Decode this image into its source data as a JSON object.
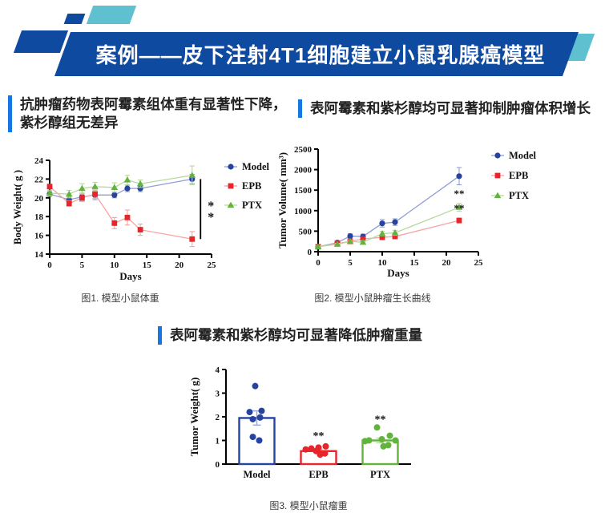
{
  "header": {
    "title": "案例——皮下注射4T1细胞建立小鼠乳腺癌模型"
  },
  "colors": {
    "banner_blue": "#0e4a9f",
    "teal": "#5fc0cf",
    "accent_bar": "#1577e0",
    "model_blue": "#2743a0",
    "epb_red": "#e8252a",
    "ptx_green": "#62b33c"
  },
  "sections": {
    "left": {
      "heading": "抗肿瘤药物表阿霉素组体重有显著性下降，紫杉醇组无差异",
      "caption": "图1. 模型小鼠体重"
    },
    "right": {
      "heading": "表阿霉素和紫杉醇均可显著抑制肿瘤体积增长",
      "caption": "图2. 模型小鼠肿瘤生长曲线"
    },
    "bottom": {
      "heading": "表阿霉素和紫杉醇均可显著降低肿瘤重量",
      "caption": "图3. 模型小鼠瘤重"
    }
  },
  "chart_data": [
    {
      "id": "body-weight",
      "type": "line",
      "xlabel": "Days",
      "ylabel": "Body Weight( g )",
      "xlim": [
        0,
        25
      ],
      "xticks": [
        0,
        5,
        10,
        15,
        20,
        25
      ],
      "ylim": [
        14,
        24
      ],
      "yticks": [
        14,
        16,
        18,
        20,
        22,
        24
      ],
      "x": [
        0,
        3,
        5,
        7,
        10,
        12,
        14,
        22
      ],
      "legend_position": "right",
      "series": [
        {
          "name": "Model",
          "marker": "circle",
          "color": "#2743a0",
          "line_color": "#8f9fd2",
          "values": [
            20.4,
            19.8,
            20.1,
            20.3,
            20.3,
            21.0,
            21.0,
            22.0
          ],
          "errors": [
            0.25,
            0.35,
            0.4,
            0.5,
            0.3,
            0.35,
            0.35,
            0.5
          ]
        },
        {
          "name": "EPB",
          "marker": "square",
          "color": "#e8252a",
          "line_color": "#f4a5a2",
          "values": [
            21.2,
            19.4,
            20.0,
            20.4,
            17.3,
            17.9,
            16.6,
            15.6
          ],
          "errors": [
            0.25,
            0.3,
            0.4,
            0.45,
            0.6,
            0.8,
            0.6,
            0.8
          ]
        },
        {
          "name": "PTX",
          "marker": "triangle",
          "color": "#62b33c",
          "line_color": "#b5d99e",
          "values": [
            20.5,
            20.4,
            21.0,
            21.2,
            21.1,
            21.9,
            21.5,
            22.4
          ],
          "errors": [
            0.3,
            0.4,
            0.5,
            0.45,
            0.5,
            0.5,
            0.4,
            1.0
          ]
        }
      ],
      "significance": {
        "x": 23.3,
        "y_top": 22.0,
        "y_bottom": 15.6,
        "label": "**"
      }
    },
    {
      "id": "tumor-volume",
      "type": "line",
      "xlabel": "Days",
      "ylabel": "Tumor Volume( mm³)",
      "xlim": [
        0,
        25
      ],
      "xticks": [
        0,
        5,
        10,
        15,
        20,
        25
      ],
      "ylim": [
        0,
        2500
      ],
      "yticks": [
        0,
        500,
        1000,
        1500,
        2000,
        2500
      ],
      "x": [
        0,
        3,
        5,
        7,
        10,
        12,
        22
      ],
      "legend_position": "right",
      "series": [
        {
          "name": "Model",
          "marker": "circle",
          "color": "#2743a0",
          "line_color": "#8f9fd2",
          "values": [
            120,
            220,
            380,
            370,
            690,
            720,
            1840
          ],
          "errors": [
            25,
            40,
            55,
            60,
            90,
            80,
            210
          ]
        },
        {
          "name": "EPB",
          "marker": "square",
          "color": "#e8252a",
          "line_color": "#f4a5a2",
          "values": [
            120,
            200,
            250,
            310,
            350,
            370,
            760
          ],
          "errors": [
            20,
            30,
            35,
            40,
            40,
            45,
            60
          ]
        },
        {
          "name": "PTX",
          "marker": "triangle",
          "color": "#62b33c",
          "line_color": "#b5d99e",
          "values": [
            120,
            180,
            250,
            230,
            440,
            460,
            1080
          ],
          "errors": [
            20,
            25,
            35,
            35,
            55,
            60,
            95
          ]
        }
      ],
      "annotations": [
        {
          "x": 22,
          "y": 1330,
          "text": "**"
        },
        {
          "x": 22,
          "y": 980,
          "text": "**"
        }
      ]
    },
    {
      "id": "tumor-weight",
      "type": "bar",
      "ylabel": "Tumor Weight( g)",
      "categories": [
        "Model",
        "EPB",
        "PTX"
      ],
      "values": [
        1.95,
        0.55,
        1.0
      ],
      "errors": [
        0.3,
        0.08,
        0.1
      ],
      "bar_colors": [
        "#2743a0",
        "#e8252a",
        "#62b33c"
      ],
      "error_colors": [
        "#9aa8d0",
        "#f2a09e",
        "#b5d99e"
      ],
      "ylim": [
        0,
        4
      ],
      "yticks": [
        0,
        1,
        2,
        3,
        4
      ],
      "points": [
        [
          [
            -2,
            3.3
          ],
          [
            6,
            2.25
          ],
          [
            -9,
            2.2
          ],
          [
            4,
            1.97
          ],
          [
            -5,
            1.9
          ],
          [
            -5,
            1.15
          ],
          [
            3,
            1.0
          ]
        ],
        [
          [
            -16,
            0.62
          ],
          [
            -9,
            0.66
          ],
          [
            0,
            0.7
          ],
          [
            9,
            0.75
          ],
          [
            -3,
            0.55
          ],
          [
            8,
            0.45
          ],
          [
            2,
            0.4
          ]
        ],
        [
          [
            -4,
            1.55
          ],
          [
            12,
            1.2
          ],
          [
            2,
            1.05
          ],
          [
            -14,
            1.0
          ],
          [
            19,
            1.0
          ],
          [
            -19,
            0.97
          ],
          [
            10,
            0.8
          ],
          [
            4,
            0.75
          ]
        ]
      ],
      "significance": [
        {
          "index": 1,
          "y": 1.05,
          "text": "**"
        },
        {
          "index": 2,
          "y": 1.75,
          "text": "**"
        }
      ]
    }
  ]
}
